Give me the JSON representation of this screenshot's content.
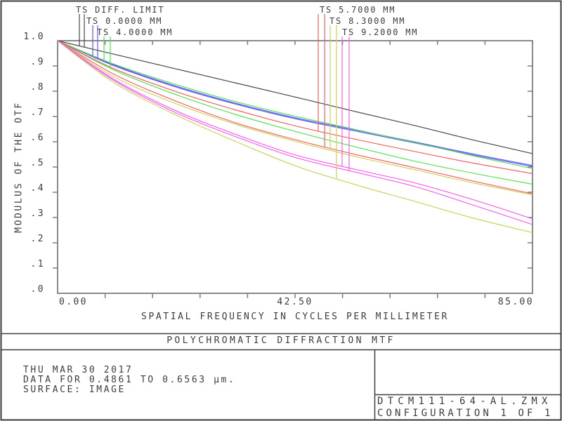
{
  "title": "POLYCHROMATIC DIFFRACTION MTF",
  "legend": {
    "left": [
      {
        "label": "TS DIFF. LIMIT",
        "color": "#474747"
      },
      {
        "label": "TS 0.0000 MM",
        "color": "#5a5aef"
      },
      {
        "label": "TS 4.0000 MM",
        "color": "#55e055"
      }
    ],
    "right": [
      {
        "label": "TS 5.7000 MM",
        "color": "#f56060"
      },
      {
        "label": "TS 8.3000 MM",
        "color": "#cfcf5a"
      },
      {
        "label": "TS 9.2000 MM",
        "color": "#f660f0"
      }
    ]
  },
  "footer": {
    "date": "THU MAR 30 2017",
    "data_range": "DATA FOR 0.4861 TO 0.6563 µm.",
    "surface": "SURFACE: IMAGE",
    "file": "DTCM111-64-AL.ZMX",
    "configuration": "CONFIGURATION 1 OF 1"
  },
  "chart_data": {
    "type": "line",
    "title": "POLYCHROMATIC DIFFRACTION MTF",
    "xlabel": "SPATIAL FREQUENCY IN CYCLES PER MILLIMETER",
    "ylabel": "MODULUS OF THE OTF",
    "xlim": [
      0,
      85
    ],
    "ylim": [
      0.0,
      1.0
    ],
    "grid": false,
    "x_tick_values": [
      0,
      42.5,
      85
    ],
    "x_tick_labels": [
      "0.00",
      "42.50",
      "85.00"
    ],
    "minor_x_tick_step": 8.5,
    "y_tick_values": [
      1.0,
      0.9,
      0.8,
      0.7,
      0.6,
      0.5,
      0.4,
      0.3,
      0.2,
      0.1,
      0.0
    ],
    "y_tick_labels": [
      "1.0",
      ".9",
      ".8",
      ".7",
      ".6",
      ".5",
      ".4",
      ".3",
      ".2",
      ".1",
      ".0"
    ],
    "x": [
      0,
      10,
      21.25,
      32,
      42.5,
      53,
      63.75,
      74,
      85
    ],
    "series": [
      {
        "name": "Diff. Limit",
        "color": "#474747",
        "values": [
          1.0,
          0.947,
          0.888,
          0.832,
          0.777,
          0.721,
          0.665,
          0.609,
          0.553
        ]
      },
      {
        "name": "0.0000 MM T",
        "color": "#5a5aef",
        "values": [
          1.0,
          0.905,
          0.82,
          0.752,
          0.695,
          0.648,
          0.6,
          0.553,
          0.506
        ]
      },
      {
        "name": "0.0000 MM S",
        "color": "#5a5aef",
        "values": [
          1.0,
          0.902,
          0.816,
          0.748,
          0.691,
          0.644,
          0.596,
          0.549,
          0.502
        ]
      },
      {
        "name": "4.0000 MM T",
        "color": "#55e055",
        "values": [
          1.0,
          0.908,
          0.826,
          0.758,
          0.701,
          0.65,
          0.598,
          0.546,
          0.494
        ]
      },
      {
        "name": "4.0000 MM S",
        "color": "#55e055",
        "values": [
          1.0,
          0.885,
          0.786,
          0.707,
          0.641,
          0.581,
          0.524,
          0.477,
          0.432
        ]
      },
      {
        "name": "5.7000 MM T",
        "color": "#f56060",
        "values": [
          1.0,
          0.89,
          0.798,
          0.725,
          0.663,
          0.611,
          0.562,
          0.517,
          0.474
        ]
      },
      {
        "name": "5.7000 MM S",
        "color": "#f56060",
        "values": [
          1.0,
          0.868,
          0.76,
          0.674,
          0.608,
          0.551,
          0.498,
          0.446,
          0.394
        ]
      },
      {
        "name": "8.3000 MM T",
        "color": "#cfcf5a",
        "values": [
          1.0,
          0.858,
          0.75,
          0.668,
          0.602,
          0.543,
          0.49,
          0.439,
          0.39
        ]
      },
      {
        "name": "8.3000 MM S",
        "color": "#cfcf5a",
        "values": [
          1.0,
          0.835,
          0.705,
          0.6,
          0.505,
          0.432,
          0.365,
          0.3,
          0.24
        ]
      },
      {
        "name": "9.2000 MM T",
        "color": "#f660f0",
        "values": [
          1.0,
          0.848,
          0.722,
          0.628,
          0.548,
          0.492,
          0.438,
          0.373,
          0.295
        ]
      },
      {
        "name": "9.2000 MM S",
        "color": "#f660f0",
        "values": [
          1.0,
          0.843,
          0.714,
          0.619,
          0.538,
          0.481,
          0.424,
          0.352,
          0.272
        ]
      }
    ]
  }
}
